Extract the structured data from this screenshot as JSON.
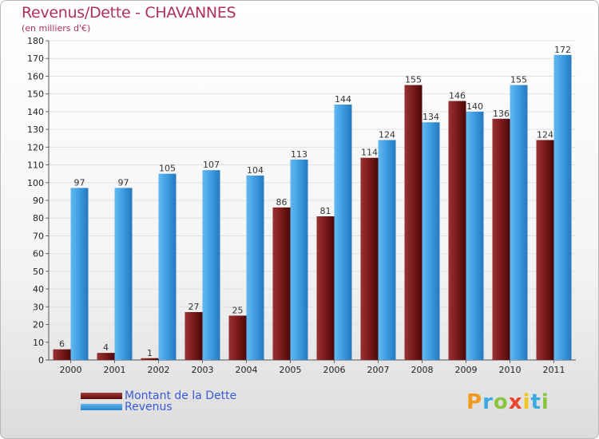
{
  "chart_data": {
    "type": "bar",
    "title": "Revenus/Dette - CHAVANNES",
    "subtitle": "(en milliers d'€)",
    "categories": [
      "2000",
      "2001",
      "2002",
      "2003",
      "2004",
      "2005",
      "2006",
      "2007",
      "2008",
      "2009",
      "2010",
      "2011"
    ],
    "series": [
      {
        "name": "Montant de la Dette",
        "color": "#7a1a1a",
        "values": [
          6,
          4,
          1,
          27,
          25,
          86,
          81,
          114,
          155,
          146,
          136,
          124
        ]
      },
      {
        "name": "Revenus",
        "color": "#3d9be0",
        "values": [
          97,
          97,
          105,
          107,
          104,
          113,
          144,
          124,
          134,
          140,
          155,
          172
        ]
      }
    ],
    "ylim": [
      0,
      180
    ],
    "ytick_step": 10,
    "grid": true,
    "legend_position": "bottom-left"
  },
  "logo": {
    "letters": [
      "P",
      "r",
      "o",
      "x",
      "i",
      "t",
      "i"
    ],
    "colors": [
      "#f39a1e",
      "#3aa9e0",
      "#8bc53f",
      "#e8452c",
      "#f0c419",
      "#3aa9e0",
      "#8bc53f"
    ]
  }
}
